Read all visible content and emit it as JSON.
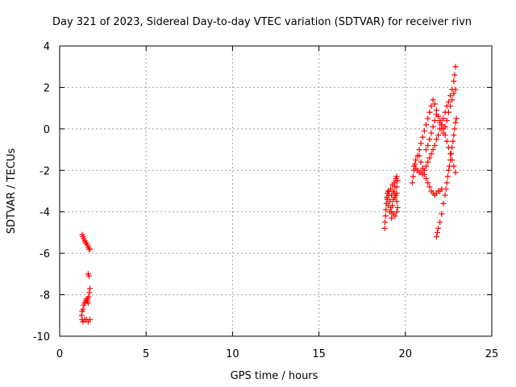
{
  "chart_data": {
    "type": "scatter",
    "title": "Day 321 of 2023, Sidereal Day-to-day VTEC variation (SDTVAR) for receiver rivn",
    "xlabel": "GPS time / hours",
    "ylabel": "SDTVAR / TECUs",
    "xlim": [
      0,
      25
    ],
    "ylim": [
      -10,
      4
    ],
    "xticks": [
      "0",
      "5",
      "10",
      "15",
      "20",
      "25"
    ],
    "yticks": [
      "-10",
      "-8",
      "-6",
      "-4",
      "-2",
      "0",
      "2",
      "4"
    ],
    "grid": true,
    "marker": "plus",
    "color": "#ff0000",
    "series": [
      {
        "points": [
          [
            1.3,
            -5.1
          ],
          [
            1.35,
            -5.2
          ],
          [
            1.4,
            -5.3
          ],
          [
            1.45,
            -5.4
          ],
          [
            1.5,
            -5.5
          ],
          [
            1.55,
            -5.5
          ],
          [
            1.6,
            -5.6
          ],
          [
            1.65,
            -5.7
          ],
          [
            1.7,
            -5.8
          ],
          [
            1.75,
            -5.8
          ],
          [
            1.65,
            -7.0
          ],
          [
            1.7,
            -7.1
          ],
          [
            1.75,
            -7.7
          ],
          [
            1.72,
            -7.9
          ],
          [
            1.68,
            -8.1
          ],
          [
            1.62,
            -8.2
          ],
          [
            1.55,
            -8.3
          ],
          [
            1.5,
            -8.3
          ],
          [
            1.45,
            -8.4
          ],
          [
            1.4,
            -8.5
          ],
          [
            1.35,
            -8.7
          ],
          [
            1.3,
            -8.8
          ],
          [
            1.27,
            -9.0
          ],
          [
            1.3,
            -9.2
          ],
          [
            1.35,
            -9.3
          ],
          [
            1.45,
            -9.2
          ],
          [
            1.55,
            -9.2
          ],
          [
            1.65,
            -9.3
          ],
          [
            1.75,
            -9.2
          ],
          [
            1.55,
            -8.2
          ],
          [
            1.6,
            -8.3
          ],
          [
            1.65,
            -8.4
          ],
          [
            18.8,
            -4.8
          ],
          [
            18.82,
            -4.5
          ],
          [
            18.85,
            -4.2
          ],
          [
            18.88,
            -3.9
          ],
          [
            18.9,
            -3.6
          ],
          [
            18.92,
            -3.3
          ],
          [
            18.95,
            -3.1
          ],
          [
            19.0,
            -3.0
          ],
          [
            19.05,
            -3.2
          ],
          [
            19.1,
            -3.5
          ],
          [
            19.15,
            -3.8
          ],
          [
            19.2,
            -4.0
          ],
          [
            19.25,
            -3.7
          ],
          [
            19.3,
            -3.4
          ],
          [
            19.35,
            -3.1
          ],
          [
            19.4,
            -2.8
          ],
          [
            19.45,
            -2.5
          ],
          [
            19.5,
            -2.3
          ],
          [
            19.55,
            -2.5
          ],
          [
            19.5,
            -2.8
          ],
          [
            19.45,
            -3.2
          ],
          [
            19.5,
            -3.5
          ],
          [
            19.55,
            -3.8
          ],
          [
            19.5,
            -4.0
          ],
          [
            19.4,
            -4.2
          ],
          [
            19.3,
            -4.1
          ],
          [
            19.2,
            -4.3
          ],
          [
            19.1,
            -4.0
          ],
          [
            19.0,
            -3.7
          ],
          [
            18.95,
            -3.4
          ],
          [
            19.05,
            -3.0
          ],
          [
            19.15,
            -2.9
          ],
          [
            19.25,
            -2.7
          ],
          [
            19.35,
            -2.6
          ],
          [
            19.45,
            -2.4
          ],
          [
            19.2,
            -3.2
          ],
          [
            19.3,
            -3.0
          ],
          [
            19.4,
            -3.3
          ],
          [
            19.5,
            -3.1
          ],
          [
            20.4,
            -2.6
          ],
          [
            20.45,
            -2.3
          ],
          [
            20.5,
            -2.0
          ],
          [
            20.55,
            -1.7
          ],
          [
            20.6,
            -1.5
          ],
          [
            20.7,
            -1.3
          ],
          [
            20.8,
            -1.0
          ],
          [
            20.9,
            -0.7
          ],
          [
            21.0,
            -0.4
          ],
          [
            21.1,
            -0.1
          ],
          [
            21.2,
            0.2
          ],
          [
            21.3,
            0.5
          ],
          [
            21.4,
            0.8
          ],
          [
            21.5,
            1.1
          ],
          [
            21.6,
            1.4
          ],
          [
            21.7,
            1.2
          ],
          [
            21.8,
            0.9
          ],
          [
            21.9,
            0.6
          ],
          [
            22.0,
            0.3
          ],
          [
            22.1,
            0.0
          ],
          [
            22.2,
            -0.2
          ],
          [
            22.3,
            0.1
          ],
          [
            22.4,
            0.4
          ],
          [
            22.5,
            0.8
          ],
          [
            22.6,
            1.1
          ],
          [
            22.7,
            1.4
          ],
          [
            22.8,
            1.7
          ],
          [
            22.9,
            1.9
          ],
          [
            20.5,
            -1.8
          ],
          [
            20.6,
            -1.9
          ],
          [
            20.7,
            -2.0
          ],
          [
            20.8,
            -2.1
          ],
          [
            20.9,
            -2.1
          ],
          [
            21.0,
            -2.2
          ],
          [
            21.1,
            -2.0
          ],
          [
            21.2,
            -1.8
          ],
          [
            21.3,
            -1.6
          ],
          [
            21.4,
            -1.4
          ],
          [
            21.5,
            -1.2
          ],
          [
            21.6,
            -1.0
          ],
          [
            21.7,
            -0.8
          ],
          [
            21.8,
            -0.5
          ],
          [
            21.9,
            -0.3
          ],
          [
            22.0,
            0.0
          ],
          [
            22.1,
            0.2
          ],
          [
            22.2,
            0.5
          ],
          [
            22.3,
            0.8
          ],
          [
            22.4,
            1.1
          ],
          [
            22.5,
            1.3
          ],
          [
            22.6,
            1.6
          ],
          [
            22.7,
            1.9
          ],
          [
            22.8,
            2.3
          ],
          [
            22.85,
            2.6
          ],
          [
            22.9,
            3.0
          ],
          [
            20.8,
            -1.3
          ],
          [
            20.9,
            -1.6
          ],
          [
            21.0,
            -1.9
          ],
          [
            21.1,
            -2.2
          ],
          [
            21.2,
            -2.4
          ],
          [
            21.3,
            -2.6
          ],
          [
            21.4,
            -2.8
          ],
          [
            21.5,
            -3.0
          ],
          [
            21.6,
            -3.1
          ],
          [
            21.7,
            -3.2
          ],
          [
            21.8,
            -3.1
          ],
          [
            21.9,
            -3.0
          ],
          [
            22.0,
            -3.0
          ],
          [
            22.1,
            -2.9
          ],
          [
            21.8,
            -5.2
          ],
          [
            21.85,
            -5.0
          ],
          [
            21.9,
            -4.8
          ],
          [
            22.0,
            -4.5
          ],
          [
            22.1,
            -4.1
          ],
          [
            22.2,
            -3.6
          ],
          [
            22.3,
            -3.2
          ],
          [
            22.35,
            -2.9
          ],
          [
            22.4,
            -2.6
          ],
          [
            22.45,
            -2.3
          ],
          [
            22.5,
            -2.0
          ],
          [
            22.55,
            -1.8
          ],
          [
            22.6,
            -1.5
          ],
          [
            22.65,
            -1.2
          ],
          [
            22.7,
            -0.9
          ],
          [
            22.75,
            -0.6
          ],
          [
            22.8,
            -0.3
          ],
          [
            22.85,
            0.0
          ],
          [
            22.9,
            0.3
          ],
          [
            22.95,
            0.5
          ],
          [
            21.2,
            -1.0
          ],
          [
            21.3,
            -0.8
          ],
          [
            21.4,
            -0.5
          ],
          [
            21.5,
            -0.2
          ],
          [
            21.6,
            0.1
          ],
          [
            21.7,
            0.4
          ],
          [
            21.8,
            0.7
          ],
          [
            21.9,
            0.6
          ],
          [
            22.0,
            0.4
          ],
          [
            22.1,
            0.2
          ],
          [
            22.2,
            0.0
          ],
          [
            22.3,
            -0.3
          ],
          [
            22.4,
            -0.6
          ],
          [
            22.5,
            -0.9
          ],
          [
            22.6,
            -1.2
          ],
          [
            22.7,
            -1.5
          ],
          [
            22.8,
            -1.8
          ],
          [
            22.9,
            -2.1
          ]
        ]
      }
    ]
  }
}
